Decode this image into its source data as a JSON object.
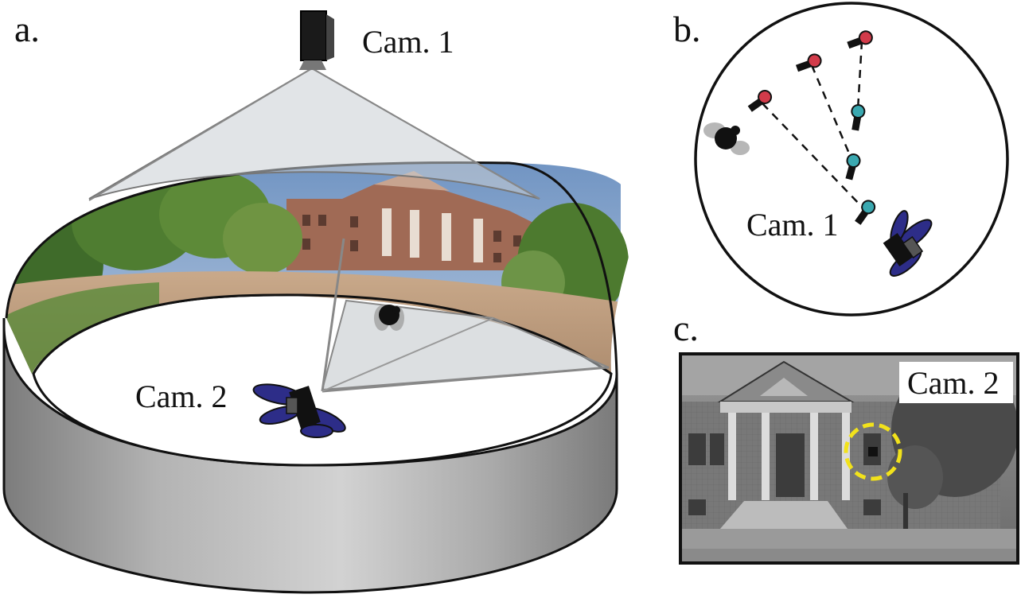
{
  "panels": {
    "a": {
      "letter": "a.",
      "top_camera_label": "Cam. 1",
      "insect_camera_label": "Cam. 2"
    },
    "b": {
      "letter": "b.",
      "camera_label": "Cam. 1"
    },
    "c": {
      "letter": "c.",
      "camera_label": "Cam. 2"
    }
  },
  "colors": {
    "wall": "#a7a7a7",
    "projection_cone": "#c9ced3",
    "sky": "#7e9fc7",
    "insect_wings": "#2d2d88",
    "target_highlight": "#f2e21b",
    "trajectory_red": "#d23b4a",
    "trajectory_cyan": "#3aa8b0"
  }
}
